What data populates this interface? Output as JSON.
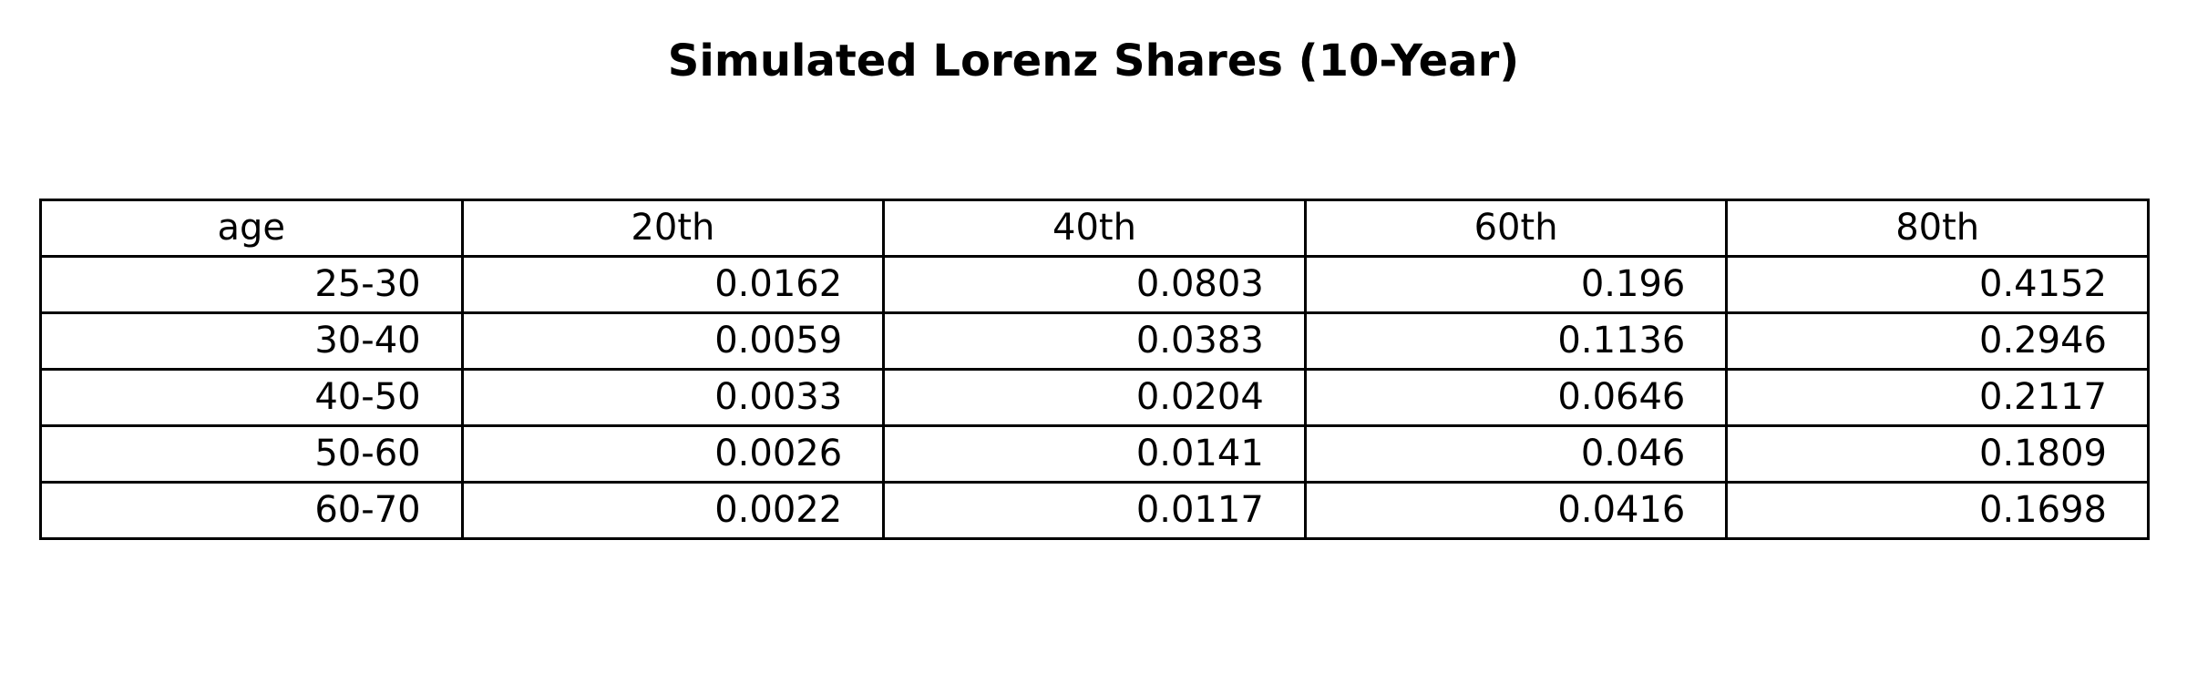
{
  "chart_data": {
    "type": "table",
    "title": "Simulated Lorenz Shares (10-Year)",
    "columns": [
      "age",
      "20th",
      "40th",
      "60th",
      "80th"
    ],
    "rows": [
      [
        "25-30",
        "0.0162",
        "0.0803",
        "0.196",
        "0.4152"
      ],
      [
        "30-40",
        "0.0059",
        "0.0383",
        "0.1136",
        "0.2946"
      ],
      [
        "40-50",
        "0.0033",
        "0.0204",
        "0.0646",
        "0.2117"
      ],
      [
        "50-60",
        "0.0026",
        "0.0141",
        "0.046",
        "0.1809"
      ],
      [
        "60-70",
        "0.0022",
        "0.0117",
        "0.0416",
        "0.1698"
      ]
    ]
  }
}
